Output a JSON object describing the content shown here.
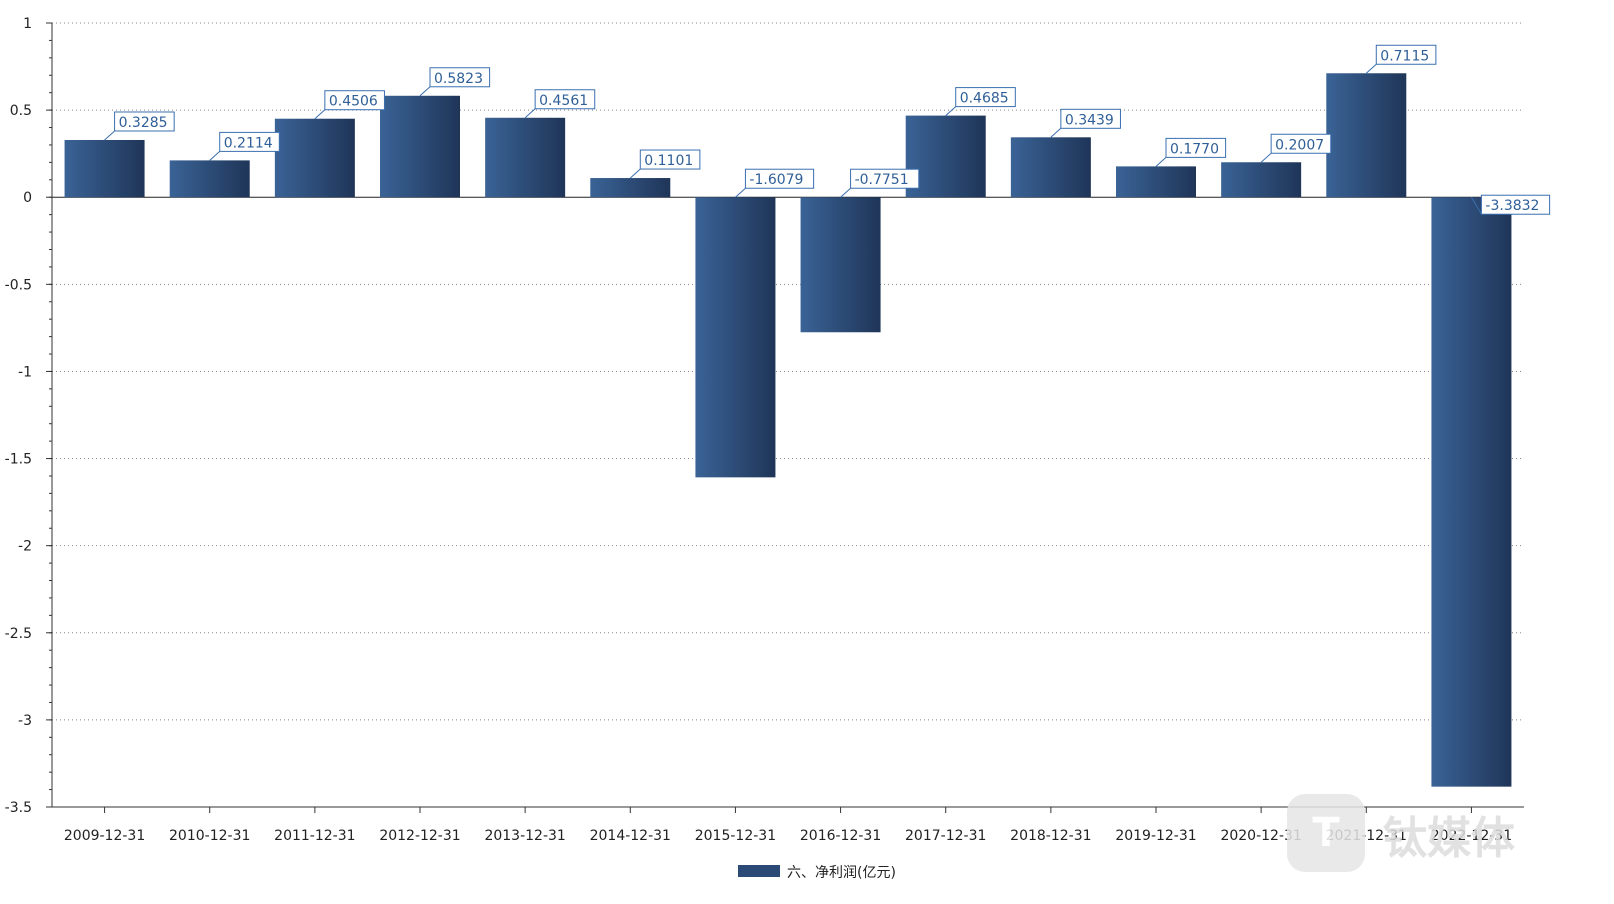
{
  "chart_data": {
    "type": "bar",
    "categories": [
      "2009-12-31",
      "2010-12-31",
      "2011-12-31",
      "2012-12-31",
      "2013-12-31",
      "2014-12-31",
      "2015-12-31",
      "2016-12-31",
      "2017-12-31",
      "2018-12-31",
      "2019-12-31",
      "2020-12-31",
      "2021-12-31",
      "2022-12-31"
    ],
    "series": [
      {
        "name": "六、净利润(亿元)",
        "values": [
          0.3285,
          0.2114,
          0.4506,
          0.5823,
          0.4561,
          0.1101,
          -1.6079,
          -0.7751,
          0.4685,
          0.3439,
          0.177,
          0.2007,
          0.7115,
          -3.3832
        ],
        "labels": [
          "0.3285",
          "0.2114",
          "0.4506",
          "0.5823",
          "0.4561",
          "0.1101",
          "-1.6079",
          "-0.7751",
          "0.4685",
          "0.3439",
          "0.1770",
          "0.2007",
          "0.7115",
          "-3.3832"
        ]
      }
    ],
    "ylim": [
      -3.5,
      1
    ],
    "yticks": [
      1,
      0.5,
      0,
      -0.5,
      -1,
      -1.5,
      -2,
      -2.5,
      -3,
      -3.5
    ],
    "ytick_labels": [
      "1",
      "0.5",
      "0",
      "-0.5",
      "-1",
      "-1.5",
      "-2",
      "-2.5",
      "-3",
      "-3.5"
    ],
    "grid": true,
    "legend_position": "bottom-center",
    "colors": {
      "bar_light": "#3a6396",
      "bar_dark": "#1f3558",
      "label_border": "#3a6fb0",
      "label_text": "#2f5f98",
      "grid": "#888888"
    }
  },
  "watermark": {
    "text": "钛媒体"
  }
}
